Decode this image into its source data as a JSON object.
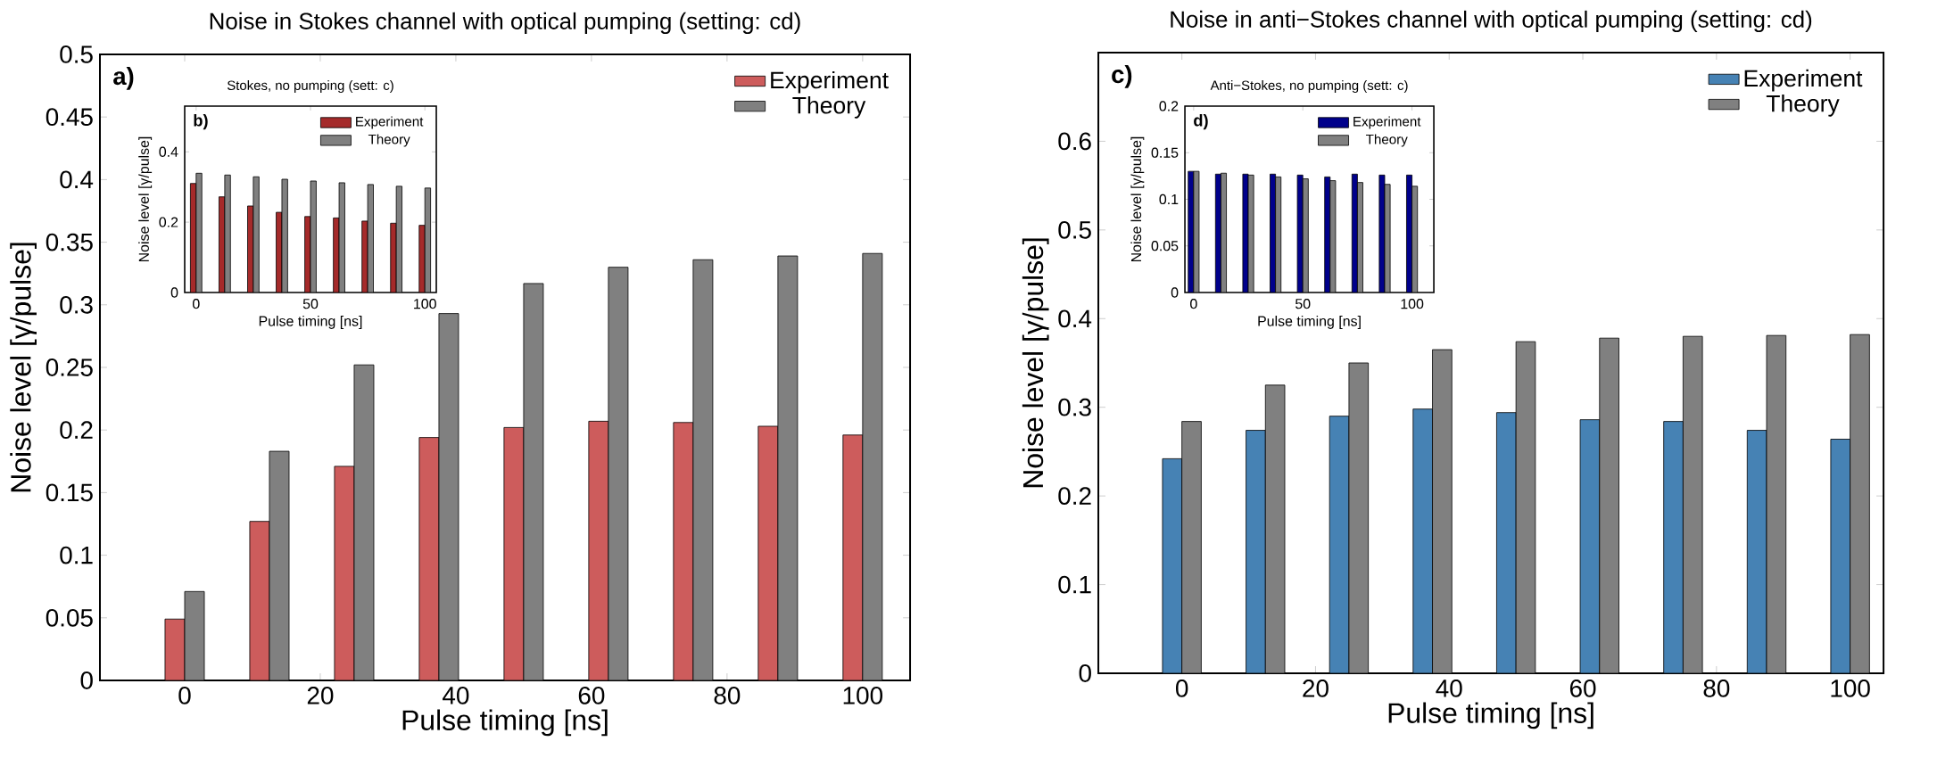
{
  "chart_data": [
    {
      "type": "bar",
      "title": "Noise in Stokes channel with optical pumping (setting: cd)",
      "xlabel": "Pulse timing [ns]",
      "ylabel": "Noise level [γ/pulse]",
      "annotations": [
        "a)"
      ],
      "x": [
        0,
        12.5,
        25,
        37.5,
        50,
        62.5,
        75,
        87.5,
        100
      ],
      "series": [
        {
          "name": "Experiment",
          "color": "#cd5c5c",
          "values": [
            0.049,
            0.127,
            0.171,
            0.194,
            0.202,
            0.207,
            0.206,
            0.203,
            0.196
          ]
        },
        {
          "name": "Theory",
          "color": "#808080",
          "values": [
            0.071,
            0.183,
            0.252,
            0.293,
            0.317,
            0.33,
            0.336,
            0.339,
            0.341
          ]
        }
      ],
      "xlim": [
        -12.5,
        107
      ],
      "ylim": [
        0,
        0.5
      ],
      "xticks": [
        0,
        20,
        40,
        60,
        80,
        100
      ],
      "yticks": [
        0,
        0.05,
        0.1,
        0.15,
        0.2,
        0.25,
        0.3,
        0.35,
        0.4,
        0.45,
        0.5
      ],
      "legend": "top right",
      "grid": false
    },
    {
      "type": "bar",
      "title": "Stokes, no pumping (sett: c)",
      "xlabel": "Pulse timing [ns]",
      "ylabel": "Noise level [γ/pulse]",
      "annotations": [
        "b)"
      ],
      "x": [
        0,
        12.5,
        25,
        37.5,
        50,
        62.5,
        75,
        87.5,
        100
      ],
      "series": [
        {
          "name": "Experiment",
          "color": "#a52a2a",
          "values": [
            0.31,
            0.272,
            0.246,
            0.228,
            0.216,
            0.212,
            0.203,
            0.197,
            0.191
          ]
        },
        {
          "name": "Theory",
          "color": "#808080",
          "values": [
            0.339,
            0.334,
            0.329,
            0.322,
            0.317,
            0.312,
            0.307,
            0.302,
            0.297
          ]
        }
      ],
      "xlim": [
        -5,
        105
      ],
      "ylim": [
        0,
        0.53
      ],
      "xticks": [
        0,
        50,
        100
      ],
      "yticks": [
        0,
        0.2,
        0.4
      ],
      "legend": "top right",
      "grid": false
    },
    {
      "type": "bar",
      "title": "Noise in anti−Stokes channel with optical pumping (setting: cd)",
      "xlabel": "Pulse timing [ns]",
      "ylabel": "Noise level [γ/pulse]",
      "annotations": [
        "c)"
      ],
      "x": [
        0,
        12.5,
        25,
        37.5,
        50,
        62.5,
        75,
        87.5,
        100
      ],
      "series": [
        {
          "name": "Experiment",
          "color": "#4682b4",
          "values": [
            0.242,
            0.274,
            0.29,
            0.298,
            0.294,
            0.286,
            0.284,
            0.274,
            0.264
          ]
        },
        {
          "name": "Theory",
          "color": "#808080",
          "values": [
            0.284,
            0.325,
            0.35,
            0.365,
            0.374,
            0.378,
            0.38,
            0.381,
            0.382
          ]
        }
      ],
      "xlim": [
        -12.5,
        105
      ],
      "ylim": [
        0,
        0.7
      ],
      "xticks": [
        0,
        20,
        40,
        60,
        80,
        100
      ],
      "yticks": [
        0,
        0.1,
        0.2,
        0.3,
        0.4,
        0.5,
        0.6
      ],
      "legend": "top right",
      "grid": false
    },
    {
      "type": "bar",
      "title": "Anti−Stokes, no pumping (sett: c)",
      "xlabel": "Pulse timing [ns]",
      "ylabel": "Noise level [γ/pulse]",
      "annotations": [
        "d)"
      ],
      "x": [
        0,
        12.5,
        25,
        37.5,
        50,
        62.5,
        75,
        87.5,
        100
      ],
      "series": [
        {
          "name": "Experiment",
          "color": "#00008b",
          "values": [
            0.13,
            0.127,
            0.127,
            0.127,
            0.126,
            0.124,
            0.127,
            0.126,
            0.126
          ]
        },
        {
          "name": "Theory",
          "color": "#808080",
          "values": [
            0.13,
            0.128,
            0.126,
            0.124,
            0.122,
            0.12,
            0.118,
            0.116,
            0.114
          ]
        }
      ],
      "xlim": [
        -4,
        110
      ],
      "ylim": [
        0,
        0.2
      ],
      "xticks": [
        0,
        50,
        100
      ],
      "yticks": [
        0,
        0.05,
        0.1,
        0.15,
        0.2
      ],
      "legend": "top right",
      "grid": false
    }
  ]
}
